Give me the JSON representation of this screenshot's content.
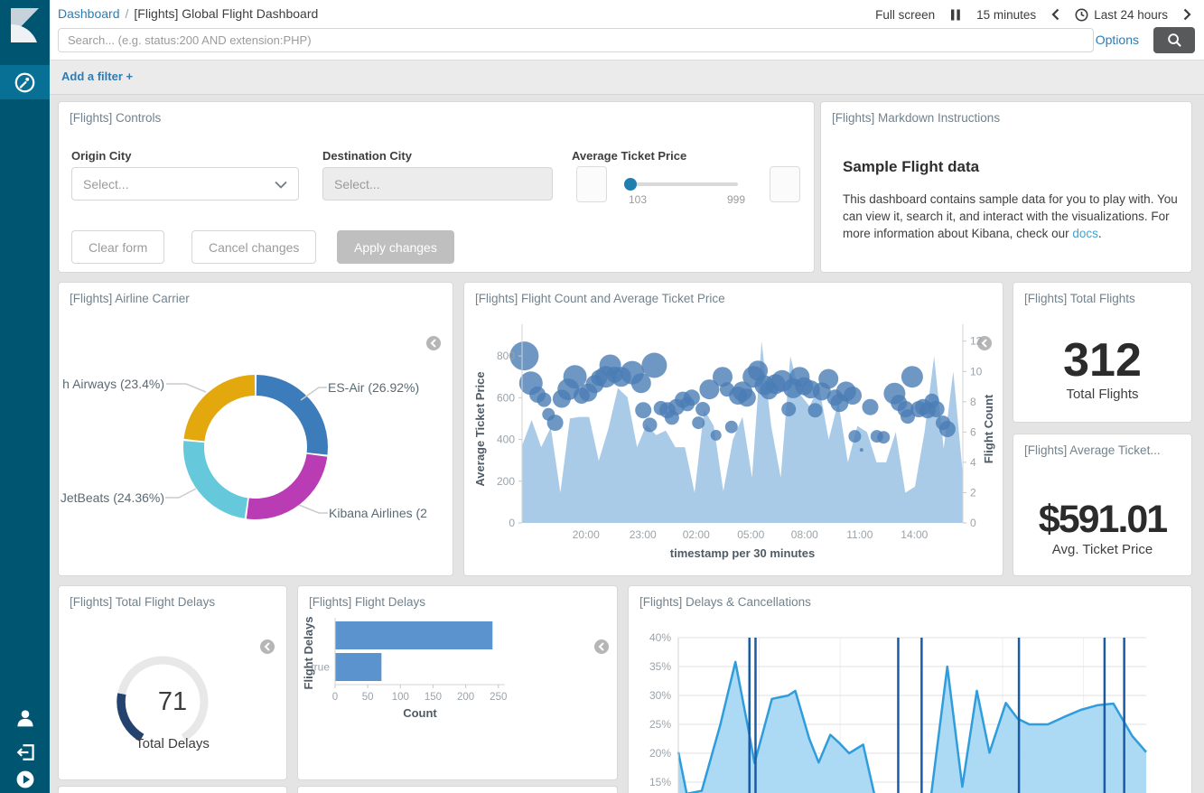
{
  "sidebar": {
    "logo_icon": "kibana-logo",
    "nav_selected_icon": "dashboard-app-icon",
    "bottom_icons": [
      "user-icon",
      "logout-icon",
      "play-circle-icon"
    ]
  },
  "header": {
    "breadcrumb": {
      "link": "Dashboard",
      "separator": "/",
      "current": "[Flights] Global Flight Dashboard"
    },
    "fullscreen_label": "Full screen",
    "pause_icon": "pause-icon",
    "refresh_interval": "15 minutes",
    "prev_icon": "chevron-left-icon",
    "clock_icon": "clock-icon",
    "time_range": "Last 24 hours",
    "next_icon": "chevron-right-icon",
    "search": {
      "placeholder": "Search... (e.g. status:200 AND extension:PHP)"
    },
    "options_label": "Options",
    "search_button_icon": "search-icon",
    "add_filter_label": "Add a filter +"
  },
  "panels": {
    "controls": {
      "title": "[Flights] Controls",
      "origin_label": "Origin City",
      "origin_value": "Select...",
      "destination_label": "Destination City",
      "destination_value": "Select...",
      "price_label": "Average Ticket Price",
      "slider_min": "103",
      "slider_max": "999",
      "clear_button": "Clear form",
      "cancel_button": "Cancel changes",
      "apply_button": "Apply changes"
    },
    "markdown": {
      "title": "[Flights] Markdown Instructions",
      "heading": "Sample Flight data",
      "body_before_link": "This dashboard contains sample data for you to play with. You can view it, search it, and interact with the visualizations. For more information about Kibana, check our ",
      "link_text": "docs",
      "body_after_link": "."
    },
    "airline": {
      "title": "[Flights] Airline Carrier"
    },
    "flight_count": {
      "title": "[Flights] Flight Count and Average Ticket Price"
    },
    "total_flights": {
      "title": "[Flights] Total Flights",
      "value": "312",
      "label": "Total Flights"
    },
    "avg_ticket": {
      "title": "[Flights] Average Ticket...",
      "value": "$591.01",
      "label": "Avg. Ticket Price"
    },
    "total_delays": {
      "title": "[Flights] Total Flight Delays",
      "value": "71",
      "label": "Total Delays"
    },
    "flight_delays": {
      "title": "[Flights] Flight Delays"
    },
    "delays_cancellations": {
      "title": "[Flights] Delays & Cancellations"
    }
  },
  "chart_data": [
    {
      "id": "airline-carrier-donut",
      "type": "pie",
      "donut": true,
      "title": "[Flights] Airline Carrier",
      "slices": [
        {
          "label": "ES-Air (26.92%)",
          "value": 26.92,
          "color": "#3d7cba"
        },
        {
          "label": "Kibana Airlines (2",
          "value": 25.32,
          "color": "#b93cb4"
        },
        {
          "label": "JetBeats (24.36%)",
          "value": 24.36,
          "color": "#65c9db"
        },
        {
          "label": "h Airways (23.4%)",
          "value": 23.4,
          "color": "#e2a80e"
        }
      ]
    },
    {
      "id": "flight-count-price",
      "type": "area+scatter",
      "title": "[Flights] Flight Count and Average Ticket Price",
      "xlabel": "timestamp per 30 minutes",
      "x_ticks": [
        {
          "label": "20:00",
          "f": 0.145
        },
        {
          "label": "23:00",
          "f": 0.274
        },
        {
          "label": "02:00",
          "f": 0.395
        },
        {
          "label": "05:00",
          "f": 0.519
        },
        {
          "label": "08:00",
          "f": 0.641
        },
        {
          "label": "11:00",
          "f": 0.766
        },
        {
          "label": "14:00",
          "f": 0.89
        }
      ],
      "y_left": {
        "label": "Average Ticket Price",
        "ticks": [
          0,
          200,
          400,
          600,
          800
        ],
        "max": 900
      },
      "y_right": {
        "label": "Flight Count",
        "ticks": [
          0,
          2,
          4,
          6,
          8,
          10,
          12
        ],
        "max": 12.4
      },
      "area_series": {
        "name": "Flight Count",
        "axis": "right",
        "color": "#a9cbe8",
        "values": [
          5.1,
          6.8,
          5.0,
          6.3,
          2.0,
          6.9,
          7.0,
          7.0,
          4.1,
          6.2,
          8.9,
          8.3,
          5.0,
          6.5,
          5.8,
          6.1,
          5.0,
          5.0,
          2.0,
          7.5,
          6.4,
          2.1,
          5.5,
          7.0,
          3.0,
          12.0,
          6.4,
          3.0,
          11.0,
          8.5,
          7.7,
          9.0,
          5.5,
          8.0,
          4.0,
          6.4,
          6.0,
          4.0,
          4.0,
          6.0,
          2.0,
          2.4,
          6.0,
          11.0,
          4.9,
          10.0,
          3.2
        ]
      },
      "bubble_series": {
        "name": "Average Ticket Price",
        "axis": "left",
        "color": "#4b7db5",
        "points": [
          [
            0.005,
            800,
            16
          ],
          [
            0.02,
            670,
            13
          ],
          [
            0.035,
            615,
            9
          ],
          [
            0.05,
            590,
            8
          ],
          [
            0.06,
            520,
            7
          ],
          [
            0.075,
            480,
            9
          ],
          [
            0.09,
            595,
            10
          ],
          [
            0.105,
            640,
            12
          ],
          [
            0.12,
            700,
            13
          ],
          [
            0.135,
            610,
            9
          ],
          [
            0.15,
            625,
            10
          ],
          [
            0.165,
            665,
            10
          ],
          [
            0.175,
            695,
            9
          ],
          [
            0.19,
            700,
            12
          ],
          [
            0.2,
            755,
            12
          ],
          [
            0.21,
            710,
            9
          ],
          [
            0.225,
            700,
            11
          ],
          [
            0.25,
            720,
            13
          ],
          [
            0.27,
            670,
            11
          ],
          [
            0.275,
            540,
            9
          ],
          [
            0.29,
            470,
            8
          ],
          [
            0.3,
            755,
            14
          ],
          [
            0.315,
            550,
            8
          ],
          [
            0.33,
            540,
            9
          ],
          [
            0.34,
            505,
            8
          ],
          [
            0.35,
            555,
            9
          ],
          [
            0.365,
            590,
            9
          ],
          [
            0.375,
            570,
            8
          ],
          [
            0.385,
            600,
            9
          ],
          [
            0.4,
            480,
            7
          ],
          [
            0.41,
            545,
            8
          ],
          [
            0.425,
            640,
            11
          ],
          [
            0.44,
            420,
            6
          ],
          [
            0.455,
            700,
            11
          ],
          [
            0.465,
            640,
            8
          ],
          [
            0.475,
            460,
            7
          ],
          [
            0.49,
            610,
            10
          ],
          [
            0.5,
            630,
            11
          ],
          [
            0.51,
            600,
            10
          ],
          [
            0.525,
            700,
            12
          ],
          [
            0.535,
            730,
            11
          ],
          [
            0.55,
            660,
            11
          ],
          [
            0.56,
            635,
            10
          ],
          [
            0.575,
            665,
            11
          ],
          [
            0.59,
            680,
            12
          ],
          [
            0.605,
            545,
            8
          ],
          [
            0.615,
            645,
            11
          ],
          [
            0.63,
            700,
            11
          ],
          [
            0.64,
            655,
            10
          ],
          [
            0.655,
            640,
            10
          ],
          [
            0.665,
            540,
            8
          ],
          [
            0.68,
            630,
            10
          ],
          [
            0.695,
            690,
            11
          ],
          [
            0.71,
            600,
            9
          ],
          [
            0.72,
            575,
            10
          ],
          [
            0.735,
            630,
            11
          ],
          [
            0.75,
            610,
            10
          ],
          [
            0.755,
            415,
            7
          ],
          [
            0.77,
            350,
            2
          ],
          [
            0.79,
            555,
            9
          ],
          [
            0.805,
            415,
            7
          ],
          [
            0.82,
            410,
            7
          ],
          [
            0.845,
            620,
            12
          ],
          [
            0.855,
            575,
            9
          ],
          [
            0.87,
            545,
            9
          ],
          [
            0.875,
            510,
            8
          ],
          [
            0.885,
            700,
            12
          ],
          [
            0.9,
            545,
            9
          ],
          [
            0.91,
            555,
            9
          ],
          [
            0.92,
            540,
            9
          ],
          [
            0.93,
            585,
            8
          ],
          [
            0.94,
            545,
            9
          ],
          [
            0.955,
            480,
            8
          ],
          [
            0.965,
            450,
            9
          ]
        ]
      }
    },
    {
      "id": "total-flight-delays-gauge",
      "type": "gauge",
      "value": 71,
      "min": 0,
      "max": 300,
      "label": "Total Delays",
      "value_color": "#24426e",
      "track_color": "#e8e8e8"
    },
    {
      "id": "flight-delays-bars",
      "type": "bar",
      "orientation": "horizontal",
      "categories": [
        "",
        "true"
      ],
      "values": [
        241,
        71
      ],
      "bar_color": "#5a93ce",
      "xlabel": "Count",
      "ylabel": "Flight Delays",
      "x_ticks": [
        0,
        50,
        100,
        150,
        200,
        250
      ],
      "xlim": [
        0,
        260
      ]
    },
    {
      "id": "delays-cancellations",
      "type": "area",
      "title": "[Flights] Delays & Cancellations",
      "y_ticks": [
        "40%",
        "35%",
        "30%",
        "25%",
        "20%",
        "15%"
      ],
      "y_grid_values": [
        40,
        35,
        30,
        25,
        20,
        15
      ],
      "line_color": "#2f9ddb",
      "fill_color": "#a8d7f3",
      "annotation_color": "#1a5ba6",
      "points": [
        [
          0,
          20.2
        ],
        [
          0.018,
          13
        ],
        [
          0.05,
          13.5
        ],
        [
          0.09,
          25
        ],
        [
          0.122,
          35.8
        ],
        [
          0.15,
          24
        ],
        [
          0.163,
          18.3
        ],
        [
          0.2,
          29.4
        ],
        [
          0.235,
          30
        ],
        [
          0.25,
          30.8
        ],
        [
          0.28,
          22.5
        ],
        [
          0.3,
          18.4
        ],
        [
          0.325,
          23.2
        ],
        [
          0.345,
          21.7
        ],
        [
          0.365,
          20
        ],
        [
          0.395,
          21.5
        ],
        [
          0.42,
          12.5
        ],
        [
          0.45,
          11.5
        ],
        [
          0.48,
          11.5
        ],
        [
          0.51,
          11.5
        ],
        [
          0.54,
          12.5
        ],
        [
          0.575,
          35
        ],
        [
          0.607,
          14.2
        ],
        [
          0.638,
          30.8
        ],
        [
          0.665,
          20.1
        ],
        [
          0.7,
          28.7
        ],
        [
          0.725,
          26
        ],
        [
          0.75,
          25
        ],
        [
          0.79,
          25
        ],
        [
          0.825,
          26.3
        ],
        [
          0.86,
          27.5
        ],
        [
          0.895,
          28.3
        ],
        [
          0.93,
          28.6
        ],
        [
          0.97,
          23
        ],
        [
          1,
          20.2
        ]
      ],
      "annotations_x": [
        0.152,
        0.165,
        0.47,
        0.52,
        0.728,
        0.911,
        0.953
      ]
    }
  ]
}
